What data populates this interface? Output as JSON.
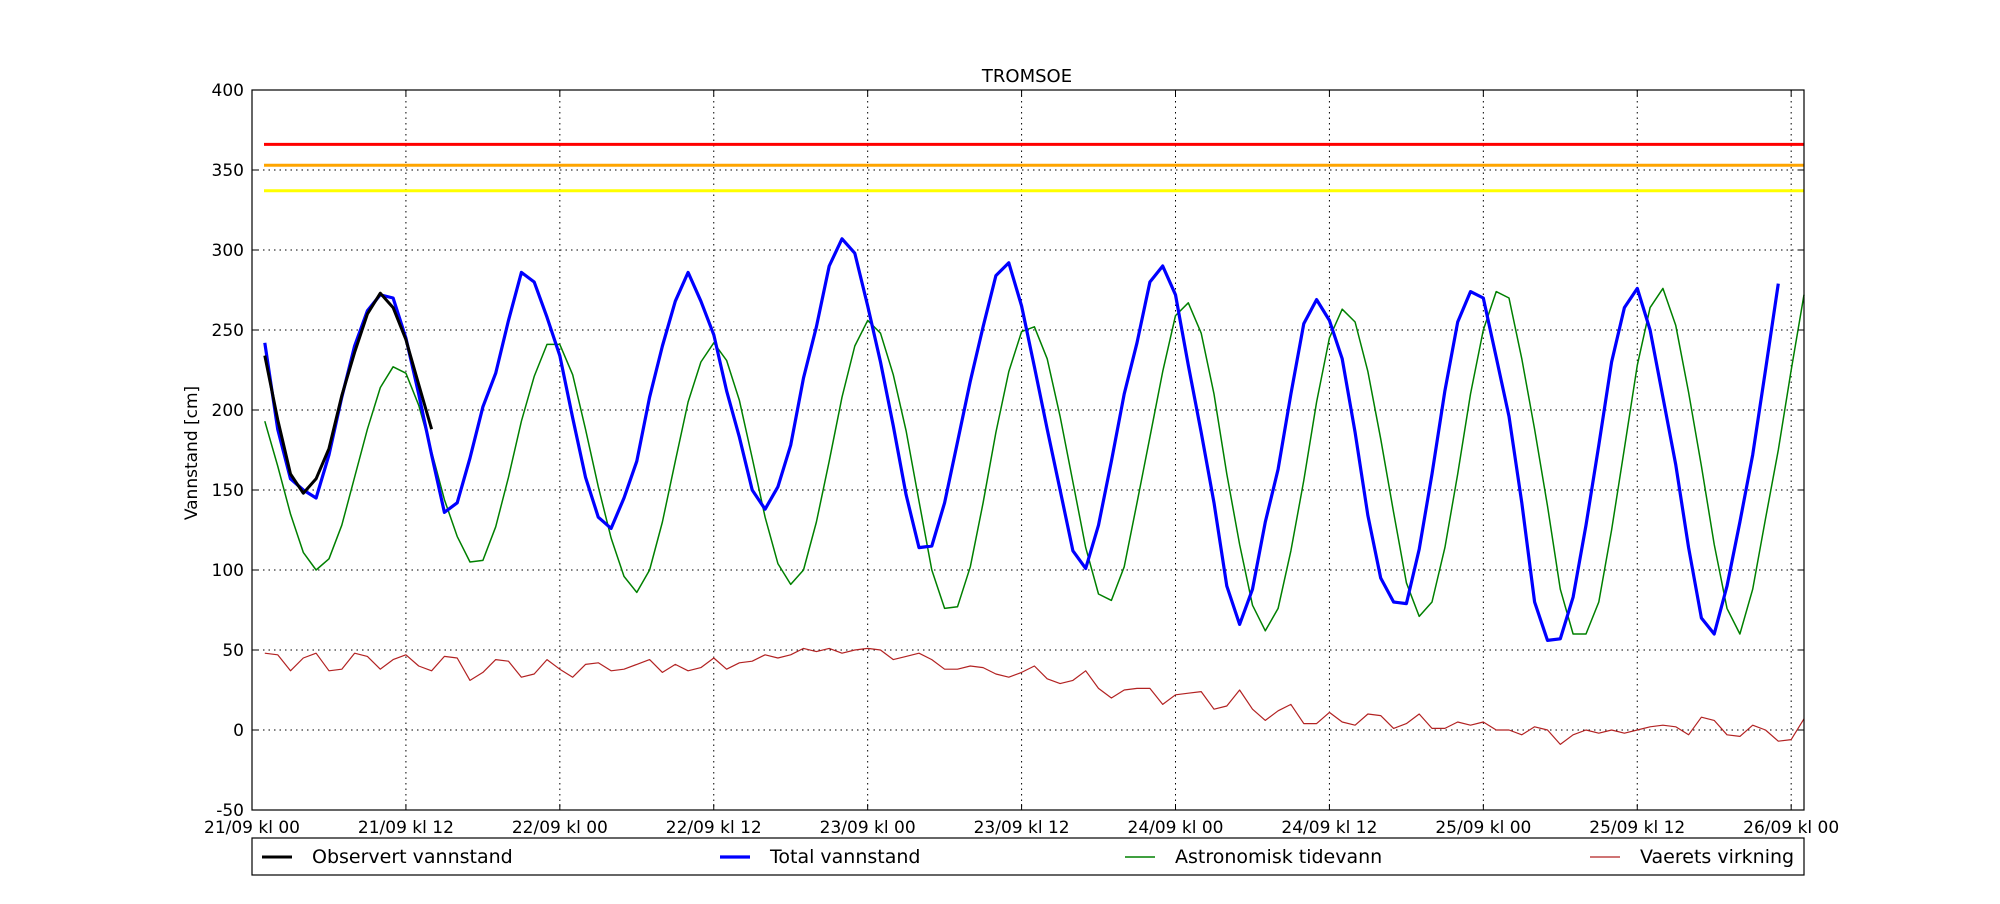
{
  "chart_data": {
    "type": "line",
    "title": "TROMSOE",
    "xlabel": "",
    "ylabel": "Vannstand [cm]",
    "ylim": [
      -50,
      400
    ],
    "yticks": [
      -50,
      0,
      50,
      100,
      150,
      200,
      250,
      300,
      350,
      400
    ],
    "xlim": [
      "2023-09-21T00:00",
      "2023-09-26T01:00"
    ],
    "xticks": [
      {
        "t": "2023-09-21T00:00",
        "label": "21/09 kl 00"
      },
      {
        "t": "2023-09-21T12:00",
        "label": "21/09 kl 12"
      },
      {
        "t": "2023-09-22T00:00",
        "label": "22/09 kl 00"
      },
      {
        "t": "2023-09-22T12:00",
        "label": "22/09 kl 12"
      },
      {
        "t": "2023-09-23T00:00",
        "label": "23/09 kl 00"
      },
      {
        "t": "2023-09-23T12:00",
        "label": "23/09 kl 12"
      },
      {
        "t": "2023-09-24T00:00",
        "label": "24/09 kl 00"
      },
      {
        "t": "2023-09-24T12:00",
        "label": "24/09 kl 12"
      },
      {
        "t": "2023-09-25T00:00",
        "label": "25/09 kl 00"
      },
      {
        "t": "2023-09-25T12:00",
        "label": "25/09 kl 12"
      },
      {
        "t": "2023-09-26T00:00",
        "label": "26/09 kl 00"
      }
    ],
    "grid": true,
    "legend": "bottom",
    "threshold_lines": [
      {
        "y": 366,
        "color": "#ff0000"
      },
      {
        "y": 353,
        "color": "#ffa500"
      },
      {
        "y": 337,
        "color": "#ffff00"
      }
    ],
    "series": [
      {
        "name": "Observert vannstand",
        "color": "#000000",
        "x_start": "2023-09-21T01:00",
        "x_step_hours": 1,
        "values": [
          234,
          194,
          160,
          148,
          157,
          176,
          209,
          236,
          260,
          273,
          264,
          244,
          216,
          188
        ]
      },
      {
        "name": "Total vannstand",
        "color": "#0000ff",
        "x_start": "2023-09-21T01:00",
        "x_step_hours": 1,
        "values": [
          242,
          188,
          157,
          150,
          145,
          172,
          208,
          240,
          262,
          272,
          270,
          245,
          210,
          172,
          136,
          142,
          170,
          202,
          223,
          256,
          286,
          280,
          258,
          234,
          195,
          158,
          133,
          126,
          145,
          168,
          208,
          240,
          268,
          286,
          268,
          247,
          212,
          183,
          150,
          138,
          152,
          178,
          220,
          252,
          290,
          307,
          298,
          265,
          230,
          190,
          147,
          114,
          115,
          142,
          180,
          218,
          252,
          284,
          292,
          265,
          227,
          188,
          150,
          112,
          101,
          128,
          168,
          210,
          242,
          280,
          290,
          272,
          228,
          186,
          142,
          90,
          66,
          88,
          130,
          163,
          210,
          254,
          269,
          256,
          232,
          186,
          134,
          95,
          80,
          79,
          113,
          160,
          212,
          255,
          274,
          270,
          233,
          196,
          142,
          80,
          56,
          57,
          83,
          128,
          178,
          230,
          264,
          276,
          250,
          208,
          166,
          114,
          70,
          60,
          90,
          130,
          172,
          225,
          279
        ]
      },
      {
        "name": "Astronomisk tidevann",
        "color": "#008000",
        "x_start": "2023-09-21T01:00",
        "x_step_hours": 1,
        "values": [
          193,
          165,
          135,
          111,
          100,
          107,
          128,
          158,
          188,
          214,
          227,
          223,
          203,
          174,
          144,
          121,
          105,
          106,
          127,
          158,
          193,
          221,
          241,
          241,
          222,
          188,
          152,
          120,
          96,
          86,
          100,
          130,
          168,
          205,
          230,
          242,
          231,
          206,
          170,
          133,
          104,
          91,
          100,
          130,
          168,
          208,
          240,
          256,
          248,
          222,
          187,
          143,
          100,
          76,
          77,
          102,
          142,
          186,
          224,
          249,
          252,
          232,
          196,
          155,
          114,
          85,
          81,
          102,
          142,
          183,
          224,
          259,
          267,
          248,
          210,
          160,
          116,
          78,
          62,
          76,
          112,
          156,
          205,
          245,
          263,
          255,
          224,
          182,
          136,
          92,
          71,
          80,
          114,
          160,
          210,
          250,
          274,
          270,
          232,
          188,
          140,
          88,
          60,
          60,
          80,
          125,
          176,
          228,
          264,
          276,
          253,
          211,
          165,
          116,
          76,
          60,
          88,
          132,
          175,
          225,
          272
        ]
      },
      {
        "name": "Vaerets virkning",
        "color": "#b22222",
        "x_start": "2023-09-21T01:00",
        "x_step_hours": 1,
        "values": [
          48,
          47,
          37,
          45,
          48,
          37,
          38,
          48,
          46,
          38,
          44,
          47,
          40,
          37,
          46,
          45,
          31,
          36,
          44,
          43,
          33,
          35,
          44,
          38,
          33,
          41,
          42,
          37,
          38,
          41,
          44,
          36,
          41,
          37,
          39,
          45,
          38,
          42,
          43,
          47,
          45,
          47,
          51,
          49,
          51,
          48,
          50,
          51,
          50,
          44,
          46,
          48,
          44,
          38,
          38,
          40,
          39,
          35,
          33,
          36,
          40,
          32,
          29,
          31,
          37,
          26,
          20,
          25,
          26,
          26,
          16,
          22,
          23,
          24,
          13,
          15,
          25,
          13,
          6,
          12,
          16,
          4,
          4,
          11,
          5,
          3,
          10,
          9,
          1,
          4,
          10,
          1,
          1,
          5,
          3,
          5,
          0,
          0,
          -3,
          2,
          0,
          -9,
          -3,
          0,
          -2,
          0,
          -2,
          0,
          2,
          3,
          2,
          -3,
          8,
          6,
          -3,
          -4,
          3,
          0,
          -7,
          -6,
          7
        ]
      }
    ]
  }
}
